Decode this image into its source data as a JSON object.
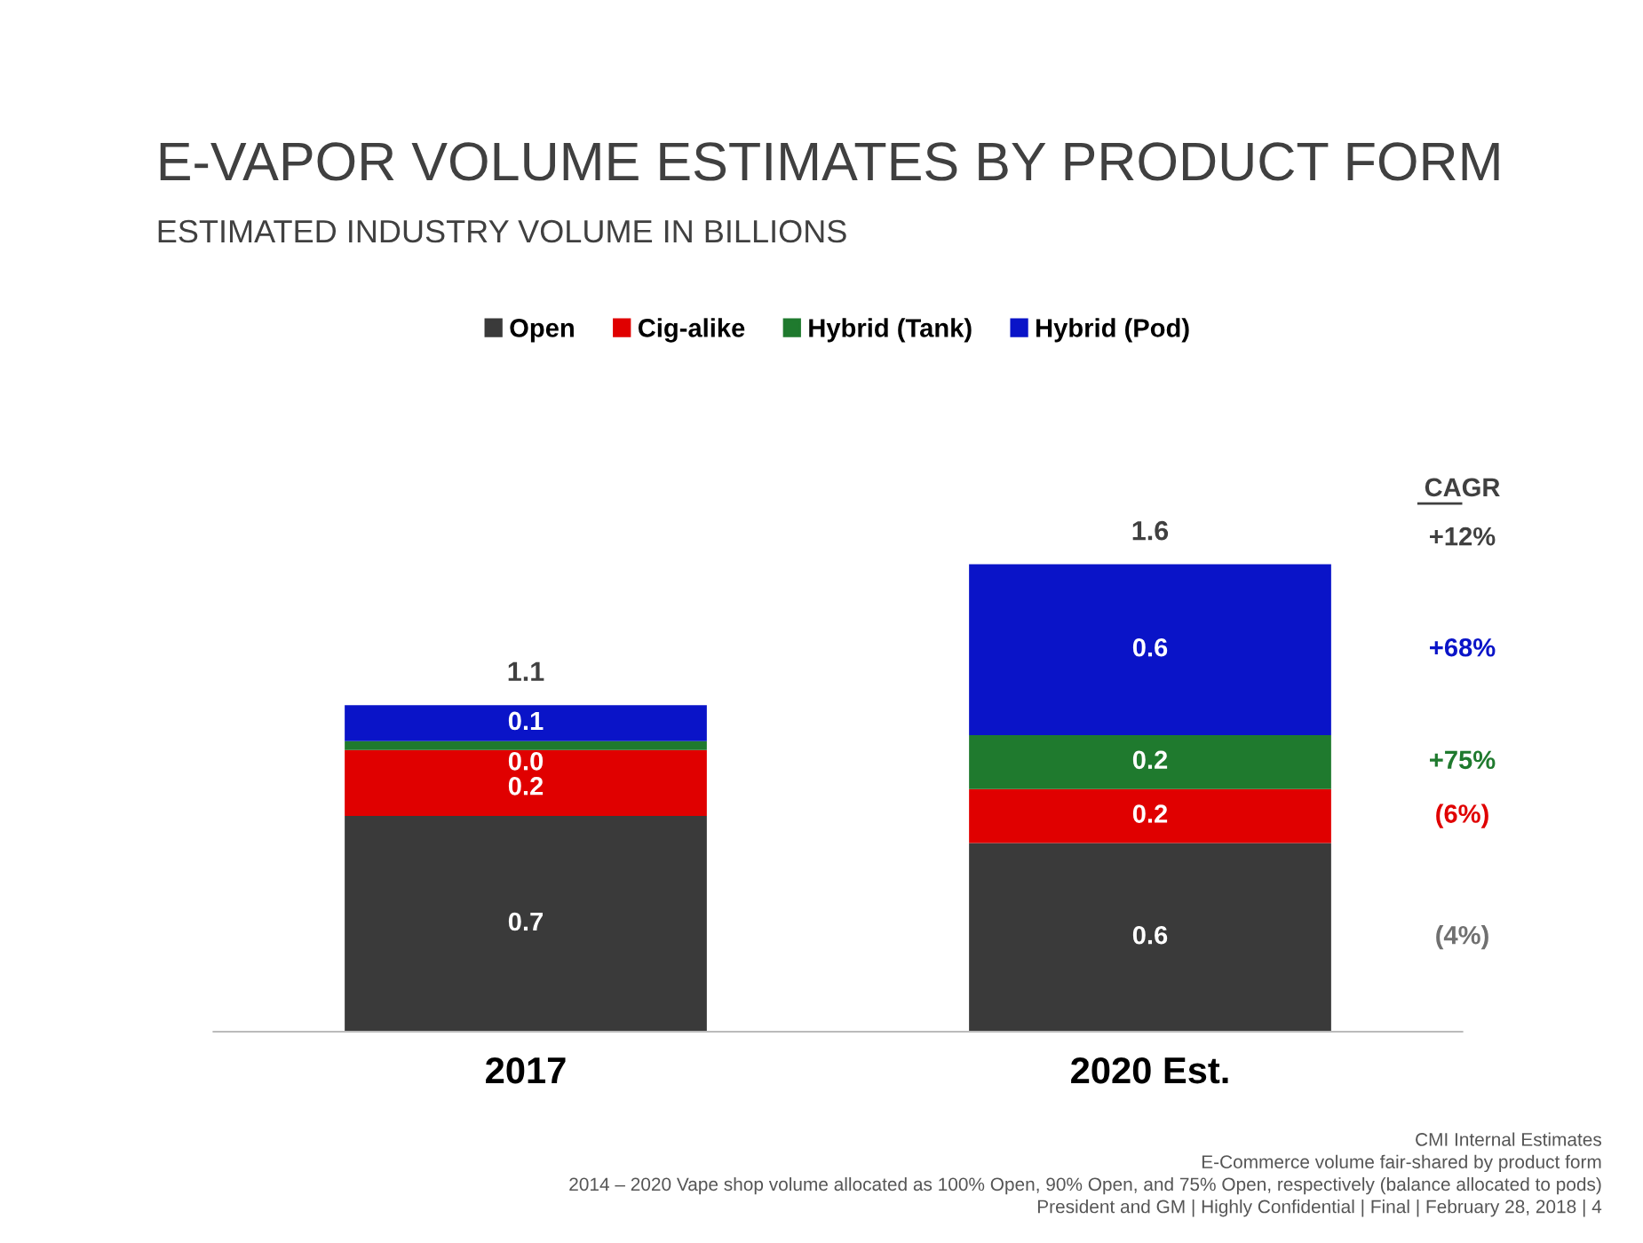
{
  "chart_data": {
    "type": "bar",
    "stacked": true,
    "title": "E-VAPOR VOLUME ESTIMATES BY PRODUCT FORM",
    "subtitle": "ESTIMATED INDUSTRY VOLUME IN BILLIONS",
    "categories": [
      "2017",
      "2020 Est."
    ],
    "series": [
      {
        "name": "Open",
        "color": "#3a3a3a",
        "values": [
          0.72,
          0.63
        ],
        "value_labels": [
          "0.7",
          "0.6"
        ]
      },
      {
        "name": "Cig-alike",
        "color": "#e00000",
        "values": [
          0.22,
          0.18
        ],
        "value_labels": [
          "0.2",
          "0.2"
        ]
      },
      {
        "name": "Hybrid (Tank)",
        "color": "#1f7a2e",
        "values": [
          0.03,
          0.18
        ],
        "value_labels": [
          "0.0",
          "0.2"
        ]
      },
      {
        "name": "Hybrid (Pod)",
        "color": "#0a14c8",
        "values": [
          0.12,
          0.57
        ],
        "value_labels": [
          "0.1",
          "0.6"
        ]
      }
    ],
    "totals": [
      "1.1",
      "1.6"
    ],
    "legend": "top",
    "grid": false,
    "tick_labels": "x",
    "annotations": [
      "CAGR",
      "+12%",
      "+68%",
      "+75%",
      "(6%)",
      "(4%)",
      "CMI Internal Estimates",
      "E-Commerce volume fair-shared by product form",
      "2014 – 2020 Vape shop volume allocated as 100% Open, 90% Open, and 75% Open, respectively (balance allocated to pods)",
      "President and GM | Highly Confidential | Final | February 28, 2018 | 4"
    ]
  }
}
